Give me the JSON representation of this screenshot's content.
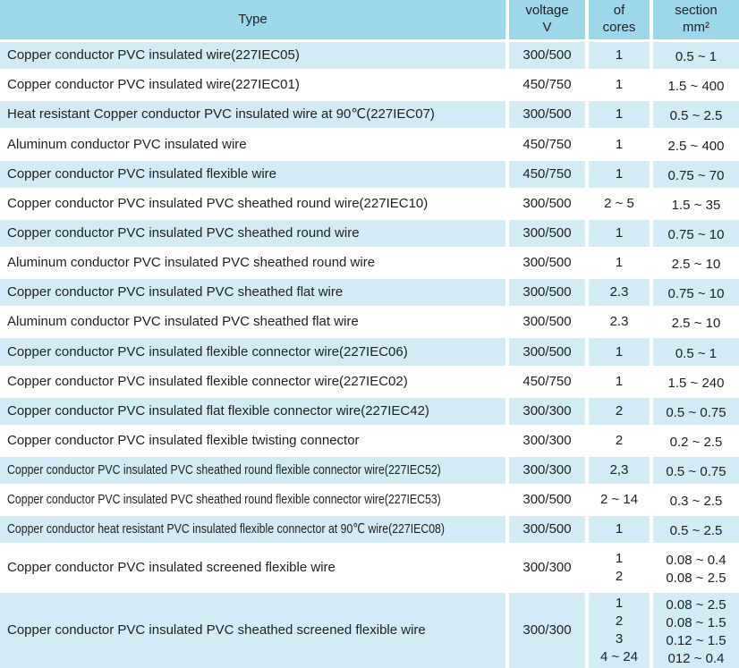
{
  "colors": {
    "header_bg": "#9cd7ea",
    "row_blue": "#d2ebf5",
    "row_white": "#ffffff",
    "grid_line": "#ffffff",
    "text": "#202224"
  },
  "table": {
    "columns": [
      {
        "label": "Type"
      },
      {
        "label": "voltage\nV"
      },
      {
        "label": "of\ncores"
      },
      {
        "label": "section\nmm²"
      }
    ],
    "rows": [
      {
        "type": "Copper conductor PVC insulated wire(227IEC05)",
        "voltage": "300/500",
        "cores": "1",
        "section": "0.5 ~ 1",
        "shade": "blue"
      },
      {
        "type": "Copper conductor PVC insulated wire(227IEC01)",
        "voltage": "450/750",
        "cores": "1",
        "section": "1.5 ~ 400",
        "shade": "white"
      },
      {
        "type": "Heat resistant Copper conductor PVC insulated wire at 90℃(227IEC07)",
        "voltage": "300/500",
        "cores": "1",
        "section": "0.5 ~ 2.5",
        "shade": "blue"
      },
      {
        "type": "Aluminum conductor PVC insulated wire",
        "voltage": "450/750",
        "cores": "1",
        "section": "2.5 ~ 400",
        "shade": "white"
      },
      {
        "type": "Copper conductor PVC insulated flexible wire",
        "voltage": "450/750",
        "cores": "1",
        "section": "0.75 ~ 70",
        "shade": "blue"
      },
      {
        "type": "Copper conductor PVC insulated PVC sheathed round wire(227IEC10)",
        "voltage": "300/500",
        "cores": "2 ~ 5",
        "section": "1.5 ~ 35",
        "shade": "white"
      },
      {
        "type": "Copper conductor PVC insulated PVC sheathed round wire",
        "voltage": "300/500",
        "cores": "1",
        "section": "0.75 ~ 10",
        "shade": "blue"
      },
      {
        "type": "Aluminum conductor PVC insulated PVC sheathed round wire",
        "voltage": "300/500",
        "cores": "1",
        "section": "2.5 ~ 10",
        "shade": "white"
      },
      {
        "type": "Copper conductor PVC insulated PVC sheathed flat wire",
        "voltage": "300/500",
        "cores": "2.3",
        "section": "0.75 ~ 10",
        "shade": "blue"
      },
      {
        "type": "Aluminum conductor PVC insulated PVC sheathed flat wire",
        "voltage": "300/500",
        "cores": "2.3",
        "section": "2.5 ~ 10",
        "shade": "white"
      },
      {
        "type": "Copper conductor PVC insulated flexible connector wire(227IEC06)",
        "voltage": "300/500",
        "cores": "1",
        "section": "0.5 ~ 1",
        "shade": "blue"
      },
      {
        "type": "Copper conductor PVC insulated flexible connector wire(227IEC02)",
        "voltage": "450/750",
        "cores": "1",
        "section": "1.5 ~ 240",
        "shade": "white"
      },
      {
        "type": "Copper conductor PVC insulated flat flexible connector wire(227IEC42)",
        "voltage": "300/300",
        "cores": "2",
        "section": "0.5 ~ 0.75",
        "shade": "blue"
      },
      {
        "type": "Copper conductor PVC insulated flexible twisting connector",
        "voltage": "300/300",
        "cores": "2",
        "section": "0.2 ~ 2.5",
        "shade": "white"
      },
      {
        "type": "Copper conductor PVC insulated PVC sheathed round flexible connector wire(227IEC52)",
        "voltage": "300/300",
        "cores": "2,3",
        "section": "0.5 ~ 0.75",
        "shade": "blue"
      },
      {
        "type": "Copper conductor PVC insulated PVC sheathed round flexible connector wire(227IEC53)",
        "voltage": "300/500",
        "cores": "2 ~ 14",
        "section": "0.3 ~ 2.5",
        "shade": "white"
      },
      {
        "type": "Copper conductor heat resistant PVC insulated flexible connector at 90℃ wire(227IEC08)",
        "voltage": "300/500",
        "cores": "1",
        "section": "0.5 ~ 2.5",
        "shade": "blue"
      },
      {
        "type": "Copper conductor PVC insulated screened flexible wire",
        "voltage": "300/300",
        "cores": "1\n2",
        "section": "0.08 ~ 0.4\n0.08 ~ 2.5",
        "shade": "white"
      },
      {
        "type": "Copper conductor PVC insulated PVC sheathed screened flexible wire",
        "voltage": "300/300",
        "cores": "1\n2\n3\n4 ~ 24",
        "section": "0.08 ~ 2.5\n0.08 ~ 1.5\n0.12 ~ 1.5\n012 ~ 0.4",
        "shade": "blue"
      }
    ]
  }
}
